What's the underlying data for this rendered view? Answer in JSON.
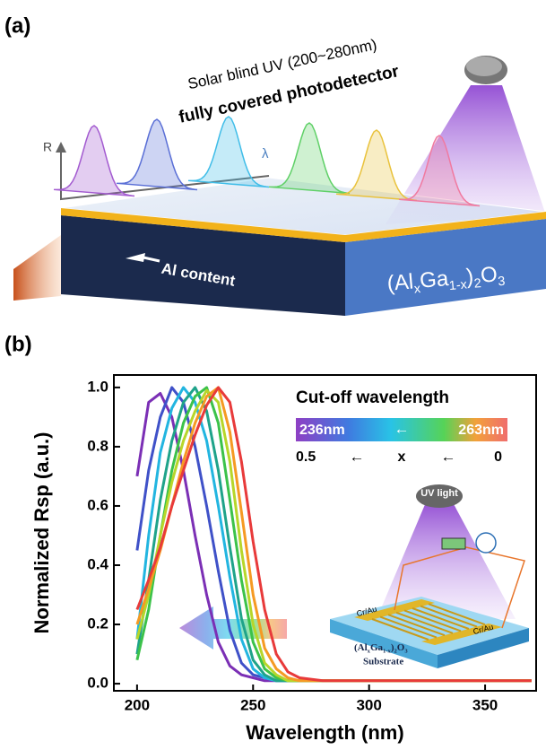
{
  "panel_labels": [
    "(a)",
    "(b)"
  ],
  "illustration": {
    "line1": "Solar blind UV (200~280nm)",
    "line2": "fully covered photodetector",
    "r_axis": "R",
    "lambda": "λ",
    "al_content": "Al content",
    "formula": [
      "(Al",
      "x",
      "Ga",
      "1-x",
      ")",
      "2",
      "O",
      "3"
    ]
  },
  "chart_data": {
    "type": "line",
    "xlabel": "Wavelength (nm)",
    "ylabel": "Normalized Rsp (a.u.)",
    "xlim": [
      190,
      372
    ],
    "ylim": [
      -0.024,
      1.042
    ],
    "xticks": [
      200,
      250,
      300,
      350
    ],
    "yticks": [
      {
        "value": 0,
        "label": "0.0"
      },
      {
        "value": 0.2,
        "label": "0.2"
      },
      {
        "value": 0.4,
        "label": "0.4"
      },
      {
        "value": 0.6,
        "label": "0.6"
      },
      {
        "value": 0.8,
        "label": "0.8"
      },
      {
        "value": 1,
        "label": "1.0"
      }
    ],
    "x": [
      200,
      205,
      210,
      215,
      220,
      225,
      230,
      235,
      240,
      245,
      250,
      255,
      260,
      265,
      270,
      280,
      300,
      370
    ],
    "series": [
      {
        "color": "#7b2fb5",
        "values": [
          0.7,
          0.95,
          0.98,
          0.9,
          0.72,
          0.5,
          0.3,
          0.14,
          0.06,
          0.03,
          0.02,
          0.01,
          0.01,
          0.01,
          0.01,
          0.01,
          0.01,
          0.01
        ]
      },
      {
        "color": "#3f51c8",
        "values": [
          0.45,
          0.72,
          0.9,
          1.0,
          0.95,
          0.8,
          0.6,
          0.38,
          0.18,
          0.07,
          0.03,
          0.02,
          0.01,
          0.01,
          0.01,
          0.01,
          0.01,
          0.01
        ]
      },
      {
        "color": "#22b5e0",
        "values": [
          0.15,
          0.5,
          0.78,
          0.93,
          1.0,
          0.95,
          0.82,
          0.6,
          0.36,
          0.15,
          0.05,
          0.02,
          0.01,
          0.01,
          0.01,
          0.01,
          0.01,
          0.01
        ]
      },
      {
        "color": "#1fa38a",
        "values": [
          0.1,
          0.35,
          0.62,
          0.82,
          0.95,
          1.0,
          0.92,
          0.72,
          0.46,
          0.22,
          0.08,
          0.03,
          0.01,
          0.01,
          0.01,
          0.01,
          0.01,
          0.01
        ]
      },
      {
        "color": "#3cc24a",
        "values": [
          0.08,
          0.25,
          0.5,
          0.72,
          0.88,
          0.97,
          1.0,
          0.88,
          0.62,
          0.35,
          0.14,
          0.05,
          0.02,
          0.01,
          0.01,
          0.01,
          0.01,
          0.01
        ]
      },
      {
        "color": "#b7d62a",
        "values": [
          0.15,
          0.3,
          0.5,
          0.68,
          0.82,
          0.92,
          0.99,
          0.95,
          0.75,
          0.45,
          0.2,
          0.07,
          0.03,
          0.01,
          0.01,
          0.01,
          0.01,
          0.01
        ]
      },
      {
        "color": "#f59a23",
        "values": [
          0.2,
          0.32,
          0.45,
          0.6,
          0.75,
          0.88,
          0.97,
          1.0,
          0.85,
          0.58,
          0.3,
          0.12,
          0.05,
          0.02,
          0.01,
          0.01,
          0.01,
          0.01
        ]
      },
      {
        "color": "#e83a3a",
        "values": [
          0.25,
          0.35,
          0.46,
          0.6,
          0.72,
          0.84,
          0.94,
          1.0,
          0.95,
          0.75,
          0.48,
          0.25,
          0.1,
          0.04,
          0.02,
          0.01,
          0.01,
          0.01
        ]
      }
    ],
    "legend": {
      "title": "Cut-off wavelength",
      "low": "236nm",
      "high": "263nm",
      "arrow": "←",
      "x_low": "0.5",
      "x_name": "x",
      "x_high": "0"
    },
    "inset": {
      "light": "UV light",
      "electrode": "Cr/Au",
      "formula": [
        "(Al",
        "x",
        "Ga",
        "1-x",
        ")",
        "2",
        "O",
        "3"
      ],
      "substrate": "Substrate"
    }
  }
}
